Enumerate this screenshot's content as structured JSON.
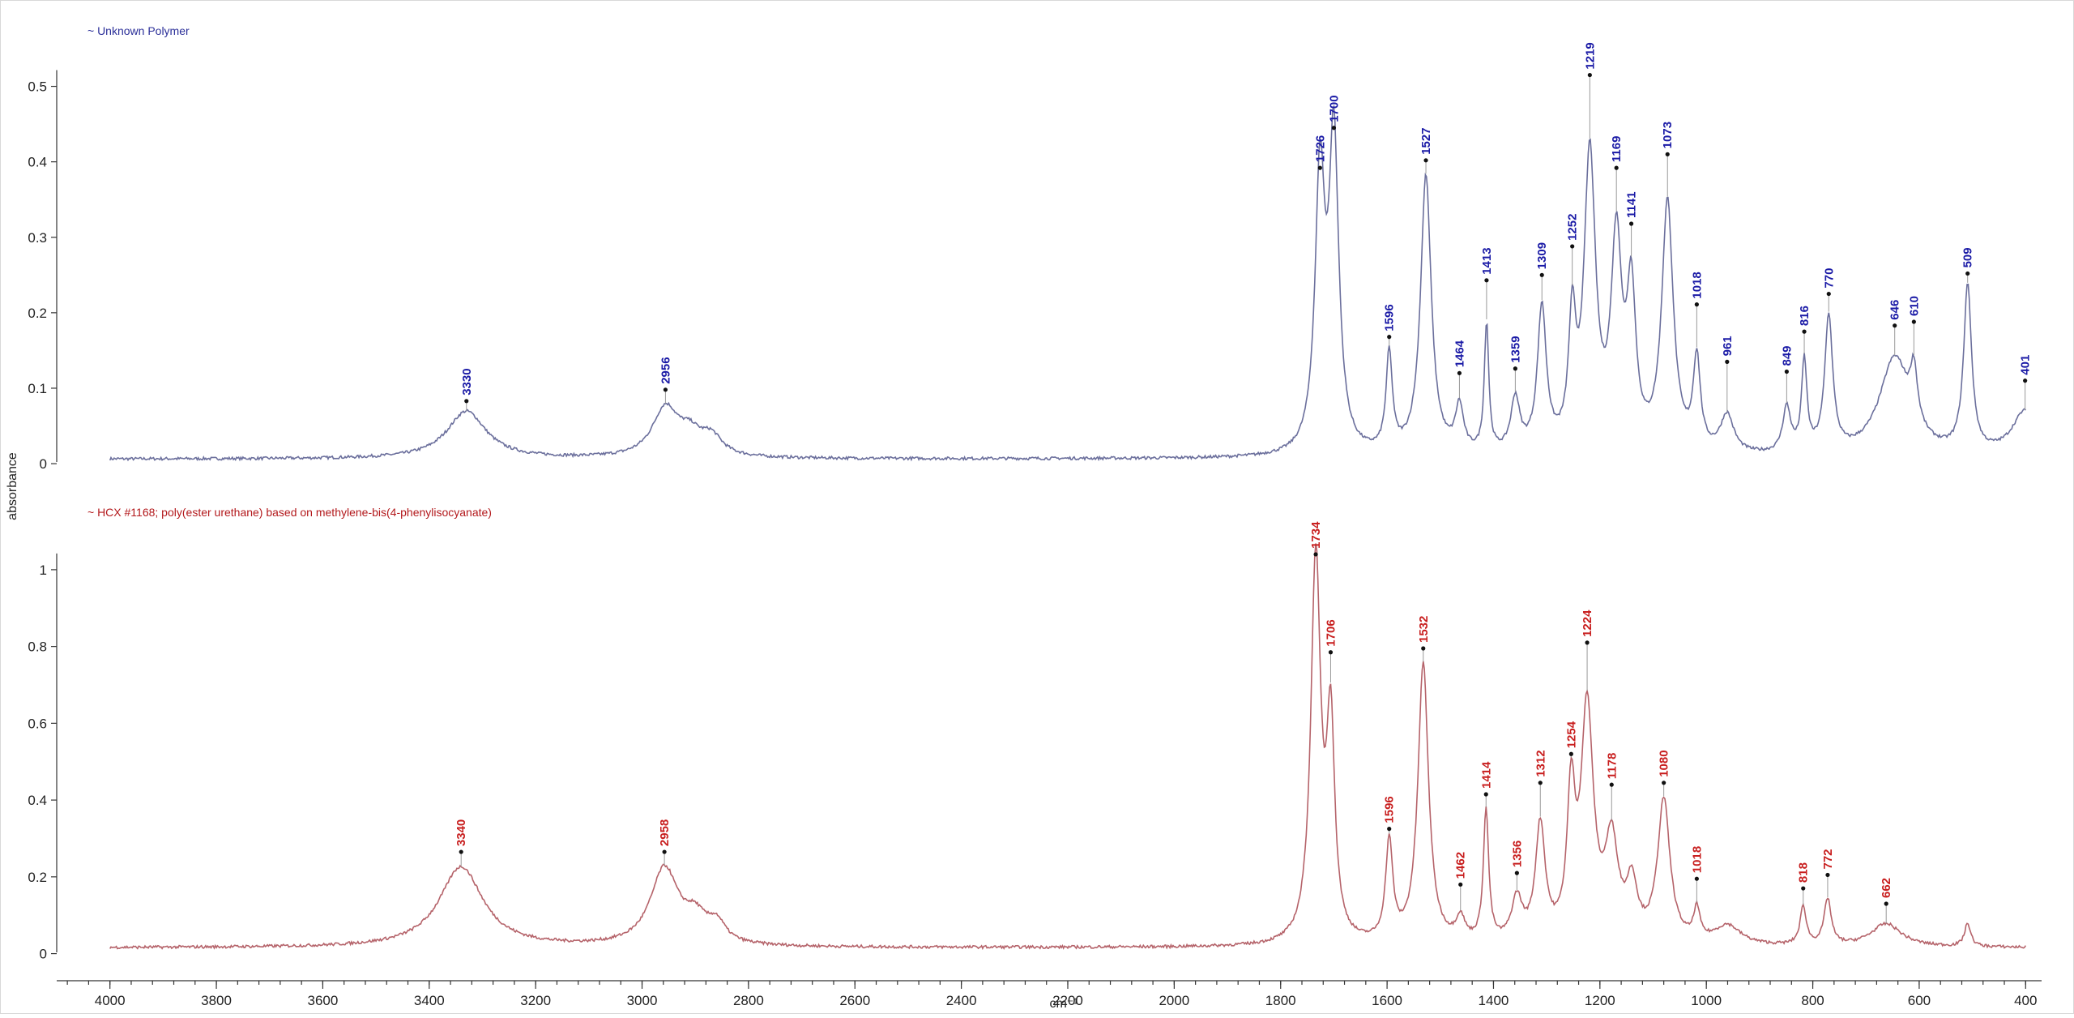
{
  "chart_data": [
    {
      "type": "line",
      "legend": "~ Unknown Polymer",
      "color": "#2b2f99",
      "label_color": "#1a1aa6",
      "line_color": "#6b6f9c",
      "ylim": [
        -0.03,
        0.55
      ],
      "yticks": [
        0,
        0.1,
        0.2,
        0.3,
        0.4,
        0.5
      ],
      "ytick_labels": [
        "0",
        "0.1",
        "0.2",
        "0.3",
        "0.4",
        "0.5"
      ],
      "baseline": 0.006,
      "peaks": [
        {
          "x": 3330,
          "y": 0.063,
          "w": 45,
          "label": "3330"
        },
        {
          "x": 2956,
          "y": 0.065,
          "w": 30,
          "label": "2956"
        },
        {
          "x": 2910,
          "y": 0.025,
          "w": 25,
          "label": ""
        },
        {
          "x": 2870,
          "y": 0.025,
          "w": 25,
          "label": ""
        },
        {
          "x": 1726,
          "y": 0.36,
          "w": 11,
          "label": "1726"
        },
        {
          "x": 1700,
          "y": 0.41,
          "w": 11,
          "label": "1700"
        },
        {
          "x": 1596,
          "y": 0.13,
          "w": 7,
          "label": "1596"
        },
        {
          "x": 1527,
          "y": 0.37,
          "w": 12,
          "label": "1527"
        },
        {
          "x": 1464,
          "y": 0.06,
          "w": 9,
          "label": "1464"
        },
        {
          "x": 1413,
          "y": 0.17,
          "w": 5,
          "label": "1413"
        },
        {
          "x": 1359,
          "y": 0.07,
          "w": 10,
          "label": "1359"
        },
        {
          "x": 1309,
          "y": 0.19,
          "w": 10,
          "label": "1309"
        },
        {
          "x": 1252,
          "y": 0.16,
          "w": 8,
          "label": "1252"
        },
        {
          "x": 1219,
          "y": 0.39,
          "w": 13,
          "label": "1219"
        },
        {
          "x": 1169,
          "y": 0.27,
          "w": 12,
          "label": "1169"
        },
        {
          "x": 1141,
          "y": 0.2,
          "w": 10,
          "label": "1141"
        },
        {
          "x": 1073,
          "y": 0.33,
          "w": 13,
          "label": "1073"
        },
        {
          "x": 1018,
          "y": 0.12,
          "w": 8,
          "label": "1018"
        },
        {
          "x": 961,
          "y": 0.05,
          "w": 15,
          "label": "961"
        },
        {
          "x": 849,
          "y": 0.06,
          "w": 9,
          "label": "849"
        },
        {
          "x": 816,
          "y": 0.12,
          "w": 6,
          "label": "816"
        },
        {
          "x": 770,
          "y": 0.18,
          "w": 9,
          "label": "770"
        },
        {
          "x": 646,
          "y": 0.13,
          "w": 35,
          "label": "646"
        },
        {
          "x": 610,
          "y": 0.07,
          "w": 8,
          "label": "610"
        },
        {
          "x": 509,
          "y": 0.22,
          "w": 9,
          "label": "509"
        },
        {
          "x": 401,
          "y": 0.06,
          "w": 30,
          "label": "401"
        }
      ],
      "labeled": [
        {
          "x": 3330,
          "y": 0.083,
          "label": "3330"
        },
        {
          "x": 2956,
          "y": 0.098,
          "label": "2956"
        },
        {
          "x": 1726,
          "y": 0.392,
          "label": "1726"
        },
        {
          "x": 1700,
          "y": 0.445,
          "label": "1700"
        },
        {
          "x": 1596,
          "y": 0.168,
          "label": "1596"
        },
        {
          "x": 1527,
          "y": 0.402,
          "label": "1527"
        },
        {
          "x": 1464,
          "y": 0.12,
          "label": "1464"
        },
        {
          "x": 1413,
          "y": 0.243,
          "label": "1413"
        },
        {
          "x": 1359,
          "y": 0.126,
          "label": "1359"
        },
        {
          "x": 1309,
          "y": 0.25,
          "label": "1309"
        },
        {
          "x": 1252,
          "y": 0.288,
          "label": "1252"
        },
        {
          "x": 1219,
          "y": 0.515,
          "label": "1219"
        },
        {
          "x": 1169,
          "y": 0.392,
          "label": "1169"
        },
        {
          "x": 1141,
          "y": 0.318,
          "label": "1141"
        },
        {
          "x": 1073,
          "y": 0.41,
          "label": "1073"
        },
        {
          "x": 1018,
          "y": 0.211,
          "label": "1018"
        },
        {
          "x": 961,
          "y": 0.135,
          "label": "961"
        },
        {
          "x": 849,
          "y": 0.122,
          "label": "849"
        },
        {
          "x": 816,
          "y": 0.175,
          "label": "816"
        },
        {
          "x": 770,
          "y": 0.225,
          "label": "770"
        },
        {
          "x": 646,
          "y": 0.183,
          "label": "646"
        },
        {
          "x": 610,
          "y": 0.188,
          "label": "610"
        },
        {
          "x": 509,
          "y": 0.252,
          "label": "509"
        },
        {
          "x": 401,
          "y": 0.11,
          "label": "401"
        }
      ]
    },
    {
      "type": "line",
      "legend": "~ HCX #1168; poly(ester urethane) based on methylene-bis(4-phenylisocyanate)",
      "color": "#b3191c",
      "label_color": "#c81e1e",
      "line_color": "#b5636a",
      "ylim": [
        -0.06,
        1.08
      ],
      "yticks": [
        0,
        0.2,
        0.4,
        0.6,
        0.8,
        1
      ],
      "ytick_labels": [
        "0",
        "0.2",
        "0.4",
        "0.6",
        "0.8",
        "1"
      ],
      "baseline": 0.015,
      "peaks": [
        {
          "x": 3340,
          "y": 0.21,
          "w": 50,
          "label": "3340"
        },
        {
          "x": 2958,
          "y": 0.2,
          "w": 32,
          "label": "2958"
        },
        {
          "x": 2900,
          "y": 0.06,
          "w": 25,
          "label": ""
        },
        {
          "x": 2860,
          "y": 0.05,
          "w": 20,
          "label": ""
        },
        {
          "x": 1734,
          "y": 1.0,
          "w": 11,
          "label": "1734"
        },
        {
          "x": 1706,
          "y": 0.55,
          "w": 9,
          "label": "1706"
        },
        {
          "x": 1596,
          "y": 0.26,
          "w": 8,
          "label": "1596"
        },
        {
          "x": 1532,
          "y": 0.73,
          "w": 12,
          "label": "1532"
        },
        {
          "x": 1462,
          "y": 0.06,
          "w": 10,
          "label": "1462"
        },
        {
          "x": 1414,
          "y": 0.34,
          "w": 6,
          "label": "1414"
        },
        {
          "x": 1356,
          "y": 0.11,
          "w": 12,
          "label": "1356"
        },
        {
          "x": 1312,
          "y": 0.3,
          "w": 11,
          "label": "1312"
        },
        {
          "x": 1254,
          "y": 0.36,
          "w": 9,
          "label": "1254"
        },
        {
          "x": 1224,
          "y": 0.6,
          "w": 14,
          "label": "1224"
        },
        {
          "x": 1178,
          "y": 0.25,
          "w": 15,
          "label": "1178"
        },
        {
          "x": 1140,
          "y": 0.14,
          "w": 12,
          "label": ""
        },
        {
          "x": 1080,
          "y": 0.37,
          "w": 14,
          "label": "1080"
        },
        {
          "x": 1018,
          "y": 0.08,
          "w": 7,
          "label": "1018"
        },
        {
          "x": 960,
          "y": 0.05,
          "w": 30,
          "label": ""
        },
        {
          "x": 818,
          "y": 0.1,
          "w": 7,
          "label": "818"
        },
        {
          "x": 772,
          "y": 0.12,
          "w": 8,
          "label": "772"
        },
        {
          "x": 662,
          "y": 0.06,
          "w": 35,
          "label": "662"
        },
        {
          "x": 509,
          "y": 0.06,
          "w": 7,
          "label": ""
        }
      ],
      "labeled": [
        {
          "x": 3340,
          "y": 0.265,
          "label": "3340"
        },
        {
          "x": 2958,
          "y": 0.265,
          "label": "2958"
        },
        {
          "x": 1734,
          "y": 1.04,
          "label": "1734"
        },
        {
          "x": 1706,
          "y": 0.785,
          "label": "1706"
        },
        {
          "x": 1596,
          "y": 0.325,
          "label": "1596"
        },
        {
          "x": 1532,
          "y": 0.795,
          "label": "1532"
        },
        {
          "x": 1462,
          "y": 0.18,
          "label": "1462"
        },
        {
          "x": 1414,
          "y": 0.415,
          "label": "1414"
        },
        {
          "x": 1356,
          "y": 0.21,
          "label": "1356"
        },
        {
          "x": 1312,
          "y": 0.445,
          "label": "1312"
        },
        {
          "x": 1254,
          "y": 0.52,
          "label": "1254"
        },
        {
          "x": 1224,
          "y": 0.81,
          "label": "1224"
        },
        {
          "x": 1178,
          "y": 0.44,
          "label": "1178"
        },
        {
          "x": 1080,
          "y": 0.445,
          "label": "1080"
        },
        {
          "x": 1018,
          "y": 0.195,
          "label": "1018"
        },
        {
          "x": 818,
          "y": 0.17,
          "label": "818"
        },
        {
          "x": 772,
          "y": 0.205,
          "label": "772"
        },
        {
          "x": 662,
          "y": 0.13,
          "label": "662"
        }
      ]
    }
  ],
  "xaxis": {
    "xlim": [
      4100,
      370
    ],
    "xticks": [
      4000,
      3800,
      3600,
      3400,
      3200,
      3000,
      2800,
      2600,
      2400,
      2200,
      2000,
      1800,
      1600,
      1400,
      1200,
      1000,
      800,
      600,
      400
    ],
    "xtick_labels": [
      "4000",
      "3800",
      "3600",
      "3400",
      "3200",
      "3000",
      "2800",
      "2600",
      "2400",
      "2200",
      "2000",
      "1800",
      "1600",
      "1400",
      "1200",
      "1000",
      "800",
      "600",
      "400"
    ],
    "xlabel": "cm⁻¹",
    "minor_step": 40
  },
  "ylabel": "absorbance"
}
